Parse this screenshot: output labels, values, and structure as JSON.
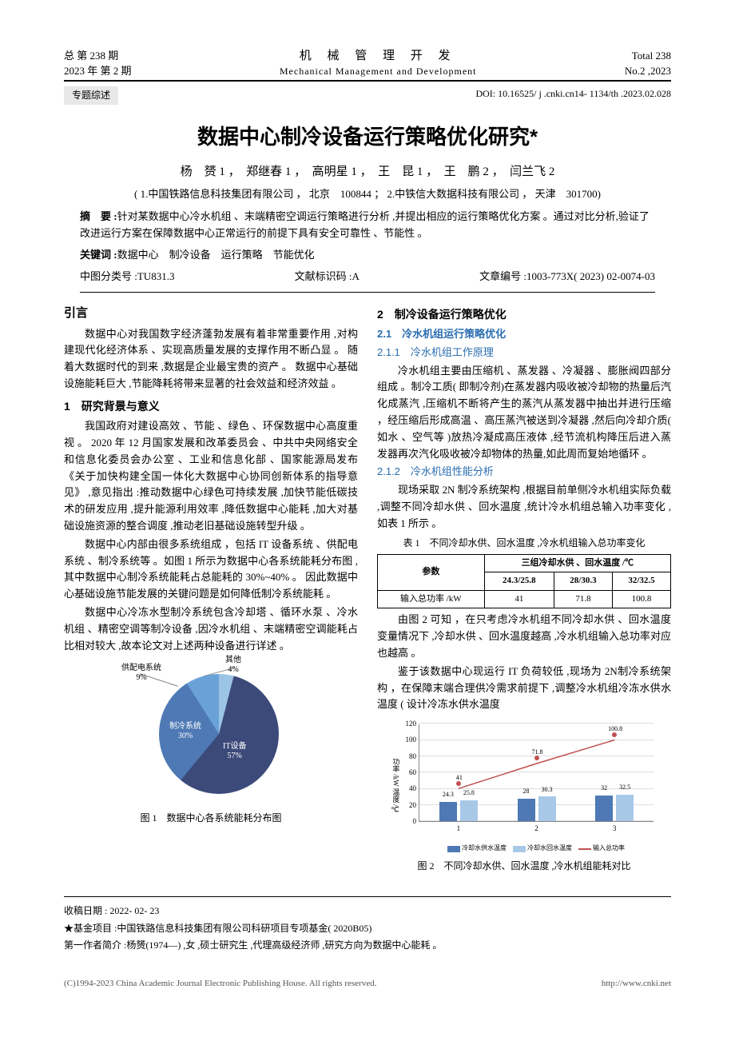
{
  "header": {
    "left1": "总 第 238 期",
    "left2": "2023 年 第 2 期",
    "center_cn": "机 械 管 理 开 发",
    "center_en": "Mechanical  Management  and  Development",
    "right1": "Total  238",
    "right2": "No.2 ,2023",
    "tag": "专题综述",
    "doi": "DOI: 10.16525/ j .cnki.cn14- 1134/th .2023.02.028"
  },
  "title": "数据中心制冷设备运行策略优化研究*",
  "authors": "杨　赟 1 ，　郑继春 1 ，　高明星 1 ，　王　昆 1 ，　王　鹏 2 ，　闫兰飞 2",
  "affil": "( 1.中国铁路信息科技集团有限公司 ，  北京　100844 ；  2.中铁信大数据科技有限公司 ，  天津　301700)",
  "abstract_label": "摘　要 :",
  "abstract": "针对某数据中心冷水机组 、末端精密空调运行策略进行分析 ,并提出相应的运行策略优化方案 。通过对比分析,验证了改进运行方案在保障数据中心正常运行的前提下具有安全可靠性 、节能性 。",
  "kw_label": "关键词 :",
  "keywords": "数据中心　制冷设备　运行策略　节能优化",
  "class_no": "中图分类号 :TU831.3",
  "doc_code": "文献标识码 :A",
  "article_id": "文章编号 :1003-773X( 2023) 02-0074-03",
  "left_col": {
    "intro_h": "引言",
    "intro_p": "数据中心对我国数字经济蓬勃发展有着非常重要作用 ,对构建现代化经济体系 、实现高质量发展的支撑作用不断凸显 。 随着大数据时代的到来 ,数据是企业最宝贵的资产 。 数据中心基础设施能耗巨大 ,节能降耗将带来显著的社会效益和经济效益 。",
    "h1": "1　研究背景与意义",
    "p1": "我国政府对建设高效 、节能 、绿色 、环保数据中心高度重视 。 2020 年 12 月国家发展和改革委员会 、中共中央网络安全和信息化委员会办公室 、工业和信息化部 、国家能源局发布《关于加快构建全国一体化大数据中心协同创新体系的指导意见》 ,意见指出 :推动数据中心绿色可持续发展 ,加快节能低碳技术的研发应用 ,提升能源利用效率 ,降低数据中心能耗 ,加大对基础设施资源的整合调度 ,推动老旧基础设施转型升级 。",
    "p2": "数据中心内部由很多系统组成 ，包括 IT 设备系统 、供配电系统 、制冷系统等 。如图 1 所示为数据中心各系统能耗分布图 ,其中数据中心制冷系统能耗占总能耗的 30%~40% 。 因此数据中心基础设施节能发展的关键问题是如何降低制冷系统能耗 。",
    "p3": "数据中心冷冻水型制冷系统包含冷却塔 、循环水泵 、冷水机组 、精密空调等制冷设备 ,因冷水机组 、末端精密空调能耗占比相对较大 ,故本论文对上述两种设备进行详述 。",
    "fig1_caption": "图 1　数据中心各系统能耗分布图"
  },
  "pie": {
    "colors": {
      "it": "#3c4a7a",
      "cooling": "#4e79b4",
      "power": "#6aa2d8",
      "other": "#9cc4e4"
    },
    "slices": [
      {
        "name": "IT设备",
        "pct": "57%"
      },
      {
        "name": "制冷系统",
        "pct": "30%"
      },
      {
        "name": "供配电系统",
        "pct": "9%"
      },
      {
        "name": "其他",
        "pct": "4%"
      }
    ]
  },
  "right_col": {
    "h2": "2　制冷设备运行策略优化",
    "h21": "2.1　冷水机组运行策略优化",
    "h211": "2.1.1　冷水机组工作原理",
    "p211": "冷水机组主要由压缩机 、蒸发器 、冷凝器 、膨胀阀四部分组成 。制冷工质( 即制冷剂)在蒸发器内吸收被冷却物的热量后汽化成蒸汽 ,压缩机不断将产生的蒸汽从蒸发器中抽出并进行压缩 ，经压缩后形成高温 、高压蒸汽被送到冷凝器 ,然后向冷却介质( 如水 、空气等 )放热冷凝成高压液体 ,经节流机构降压后进入蒸发器再次汽化吸收被冷却物体的热量,如此周而复始地循环 。",
    "h212": "2.1.2　冷水机组性能分析",
    "p212a": "现场采取 2N 制冷系统架构 ,根据目前单侧冷水机组实际负载 ,调整不同冷却水供 、回水温度 ,统计冷水机组总输入功率变化 ,如表 1 所示 。",
    "table1_title": "表 1　不同冷却水供、回水温度 ,冷水机组输入总功率变化",
    "p212b": "由图 2 可知 ，在只考虑冷水机组不同冷却水供 、回水温度变量情况下 ,冷却水供 、回水温度越高 ,冷水机组输入总功率对应也越高 。",
    "p212c": "鉴于该数据中心现运行 IT 负荷较低 ,现场为 2N制冷系统架构 ，在保障末端合理供冷需求前提下 ,调整冷水机组冷冻水供水温度 ( 设计冷冻水供水温度",
    "fig2_caption": "图 2　不同冷却水供、回水温度 ,冷水机组能耗对比"
  },
  "table1": {
    "head_param": "参数",
    "head_group": "三组冷却水供 、回水温度 /℃",
    "cols": [
      "24.3/25.8",
      "28/30.3",
      "32/32.5"
    ],
    "row_label": "输入总功率 /kW",
    "row_vals": [
      "41",
      "71.8",
      "100.8"
    ]
  },
  "barchart": {
    "ylim": [
      0,
      120
    ],
    "ytick_step": 20,
    "yaxis_title": "功率 /kW\n温度 /℃",
    "categories": [
      "1",
      "2",
      "3"
    ],
    "series": [
      {
        "name": "冷却水供水温度",
        "color": "#4e79b4",
        "values": [
          24.3,
          28,
          32
        ]
      },
      {
        "name": "冷却水回水温度",
        "color": "#a8c8e8",
        "values": [
          25.8,
          30.3,
          32.5
        ]
      }
    ],
    "line": {
      "name": "输入总功率",
      "color": "#c05050",
      "values": [
        41,
        71.8,
        100.8
      ]
    },
    "bar_labels": [
      [
        "24.3",
        "25.8"
      ],
      [
        "28",
        "30.3"
      ],
      [
        "32",
        "32.5"
      ]
    ],
    "line_labels": [
      "41",
      "71.8",
      "100.8"
    ]
  },
  "footer": {
    "recv": "收稿日期 : 2022- 02- 23",
    "fund": "★基金项目 :中国铁路信息科技集团有限公司科研项目专项基金( 2020B05)",
    "author": "第一作者简介 :杨赟(1974—) ,女 ,硕士研究生 ,代理高级经济师 ,研究方向为数据中心能耗 。"
  },
  "copyright_l": "(C)1994-2023 China Academic Journal Electronic Publishing House. All rights reserved.",
  "copyright_r": "http://www.cnki.net"
}
